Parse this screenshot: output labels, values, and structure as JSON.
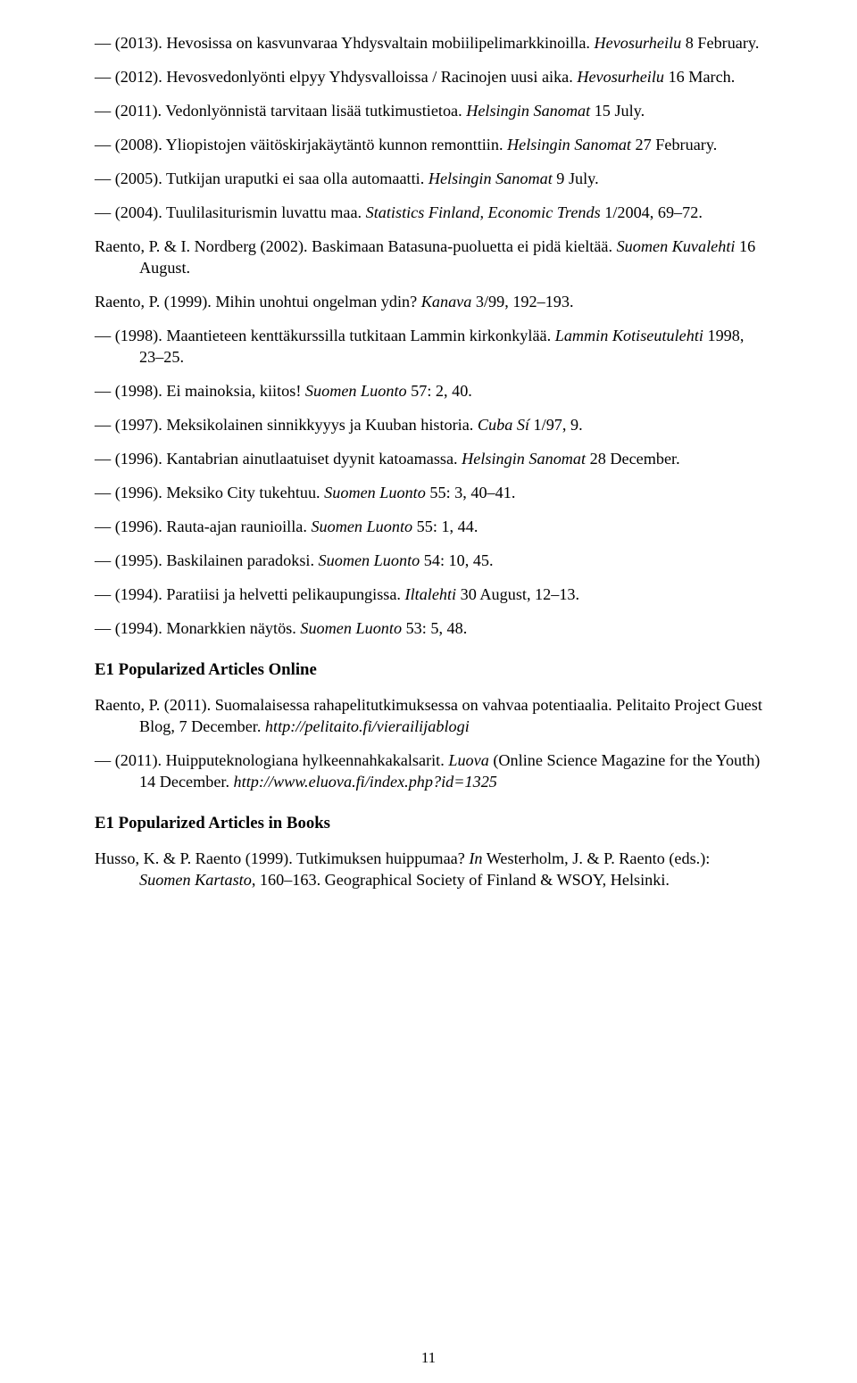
{
  "entries_a": [
    {
      "prefix": "— (2013). ",
      "plain1": "Hevosissa on kasvunvaraa Yhdysvaltain mobiilipelimarkkinoilla. ",
      "italic1": "Hevosurheilu",
      "plain2": " 8 February."
    },
    {
      "prefix": "— (2012). ",
      "plain1": "Hevosvedonlyönti elpyy Yhdysvalloissa / Racinojen uusi aika. ",
      "italic1": "Hevosurheilu",
      "plain2": " 16 March."
    },
    {
      "prefix": "— (2011). ",
      "plain1": "Vedonlyönnistä tarvitaan lisää tutkimustietoa. ",
      "italic1": "Helsingin Sanomat",
      "plain2": " 15 July."
    },
    {
      "prefix": "— (2008). ",
      "plain1": "Yliopistojen väitöskirjakäytäntö kunnon remonttiin. ",
      "italic1": "Helsingin Sanomat",
      "plain2": " 27 February."
    },
    {
      "prefix": "— (2005). ",
      "plain1": "Tutkijan uraputki ei saa olla automaatti. ",
      "italic1": "Helsingin Sanomat",
      "plain2": " 9 July."
    },
    {
      "prefix": "— (2004). ",
      "plain1": "Tuulilasiturismin luvattu maa. ",
      "italic1": "Statistics Finland, Economic Trends",
      "plain2": " 1/2004, 69–72."
    },
    {
      "prefix": "Raento, P. & I. Nordberg (2002). ",
      "plain1": "Baskimaan Batasuna-puoluetta ei pidä kieltää. ",
      "italic1": "Suomen Kuvalehti",
      "plain2": " 16 August."
    },
    {
      "prefix": "Raento, P. (1999). ",
      "plain1": "Mihin unohtui ongelman ydin? ",
      "italic1": "Kanava",
      "plain2": " 3/99, 192–193."
    },
    {
      "prefix": "— (1998). ",
      "plain1": "Maantieteen kenttäkurssilla tutkitaan Lammin kirkonkylää. ",
      "italic1": "Lammin Kotiseutulehti",
      "plain2": " 1998, 23–25."
    },
    {
      "prefix": "— (1998). ",
      "plain1": "Ei mainoksia, kiitos! ",
      "italic1": "Suomen Luonto",
      "plain2": " 57: 2, 40."
    },
    {
      "prefix": "— (1997). ",
      "plain1": "Meksikolainen sinnikkyyys ja Kuuban historia. ",
      "italic1": "Cuba Sí",
      "plain2": " 1/97, 9."
    },
    {
      "prefix": "— (1996). ",
      "plain1": "Kantabrian ainutlaatuiset dyynit katoamassa. ",
      "italic1": "Helsingin Sanomat",
      "plain2": " 28 December."
    },
    {
      "prefix": "— (1996). ",
      "plain1": "Meksiko City tukehtuu. ",
      "italic1": "Suomen Luonto",
      "plain2": " 55: 3, 40–41."
    },
    {
      "prefix": "— (1996). ",
      "plain1": "Rauta-ajan raunioilla. ",
      "italic1": "Suomen Luonto",
      "plain2": " 55: 1, 44."
    },
    {
      "prefix": "— (1995). ",
      "plain1": "Baskilainen paradoksi. ",
      "italic1": "Suomen Luonto",
      "plain2": " 54: 10, 45."
    },
    {
      "prefix": "— (1994). ",
      "plain1": "Paratiisi ja helvetti pelikaupungissa. ",
      "italic1": "Iltalehti",
      "plain2": " 30 August, 12–13."
    },
    {
      "prefix": "— (1994). ",
      "plain1": "Monarkkien näytös. ",
      "italic1": "Suomen Luonto",
      "plain2": " 53: 5, 48."
    }
  ],
  "heading_online": "E1 Popularized Articles Online",
  "entries_b": [
    {
      "prefix": "Raento, P. (2011). ",
      "plain1": "Suomalaisessa rahapelitutkimuksessa on vahvaa potentiaalia. Pelitaito Project Guest Blog, 7 December. ",
      "italic1": "http://pelitaito.fi/vierailijablogi",
      "plain2": ""
    },
    {
      "prefix": "— (2011). ",
      "plain1": "Huipputeknologiana hylkeennahkakalsarit. ",
      "italic1": "Luova",
      "plain2": " (Online Science Magazine for the Youth) 14 December.  ",
      "italic2": "http://www.eluova.fi/index.php?id=1325"
    }
  ],
  "heading_books": "E1 Popularized Articles in Books",
  "entries_c": [
    {
      "prefix": "Husso, K. & P. Raento (1999). ",
      "plain1": "Tutkimuksen huippumaa? ",
      "italic1": "In",
      "plain2": " Westerholm, J. & P. Raento (eds.): ",
      "italic2": "Suomen Kartasto",
      "plain3": ", 160–163. Geographical Society of Finland & WSOY, Helsinki."
    }
  ],
  "page_number": "11"
}
